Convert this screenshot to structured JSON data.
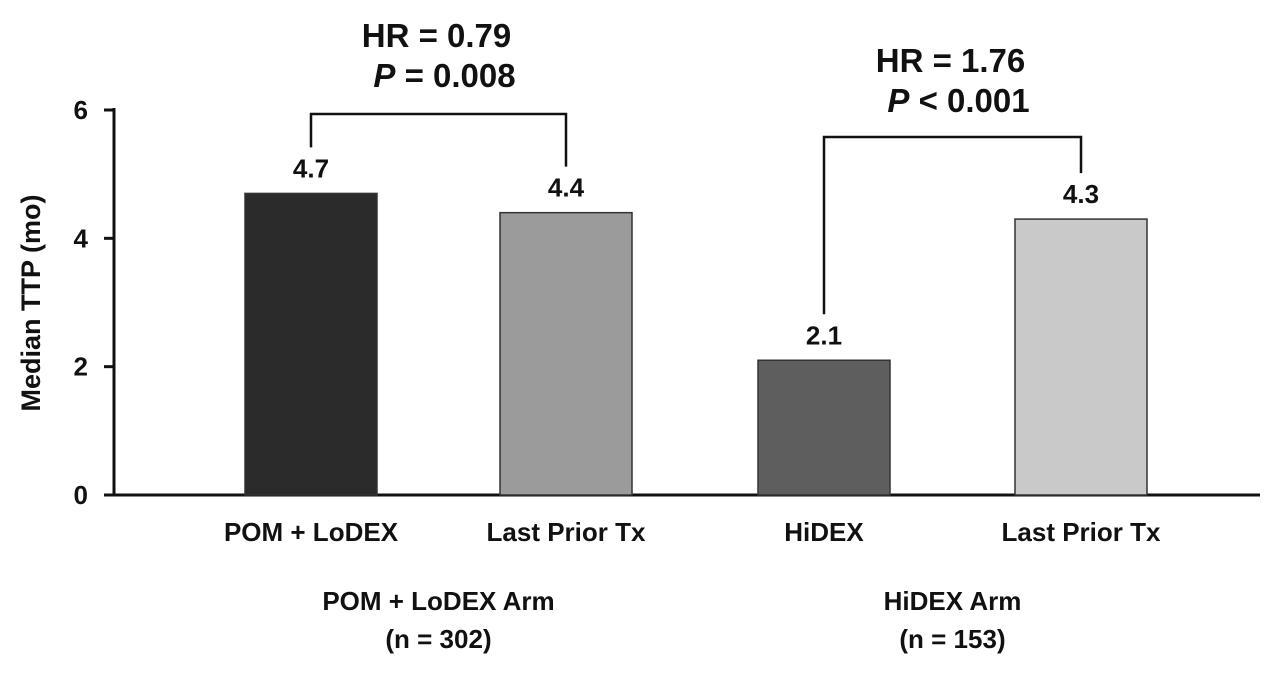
{
  "chart_data": {
    "type": "bar",
    "ylabel": "Median TTP (mo)",
    "ylim": [
      0,
      6
    ],
    "yticks": [
      0,
      2,
      4,
      6
    ],
    "categories": [
      "POM + LoDEX",
      "Last Prior Tx",
      "HiDEX",
      "Last Prior Tx"
    ],
    "values": [
      4.7,
      4.4,
      2.1,
      4.3
    ],
    "value_labels": [
      "4.7",
      "4.4",
      "2.1",
      "4.3"
    ],
    "bar_colors": [
      "#2b2b2b",
      "#9b9b9b",
      "#5e5e5e",
      "#c9c9c9"
    ],
    "groups": [
      {
        "name": "POM + LoDEX Arm",
        "n": "(n = 302)",
        "bars": [
          0,
          1
        ]
      },
      {
        "name": "HiDEX Arm",
        "n": "(n = 153)",
        "bars": [
          2,
          3
        ]
      }
    ],
    "comparisons": [
      {
        "bars": [
          0,
          1
        ],
        "hr_prefix": "HR = ",
        "hr_value": "0.79",
        "p_symbol": "P",
        "p_rest": " = 0.008"
      },
      {
        "bars": [
          2,
          3
        ],
        "hr_prefix": "HR = ",
        "hr_value": "1.76",
        "p_symbol": "P",
        "p_rest": " < 0.001"
      }
    ]
  }
}
